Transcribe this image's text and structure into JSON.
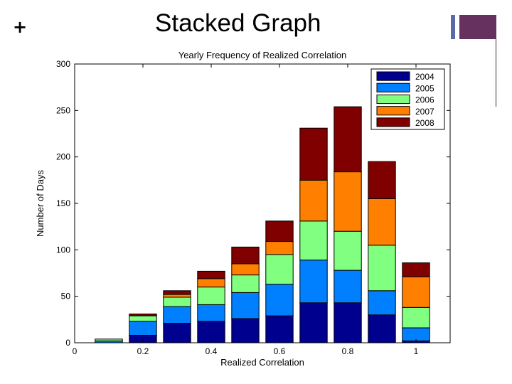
{
  "slide": {
    "title": "Stacked Graph",
    "bullet_icon": "plus-icon",
    "accent_colors": {
      "bar": "#5a6aa8",
      "block": "#66305f"
    }
  },
  "chart_data": {
    "type": "bar",
    "stacked": true,
    "title": "Yearly Frequency of Realized Correlation",
    "xlabel": "Realized Correlation",
    "ylabel": "Number of Days",
    "xlim": [
      0,
      1.1
    ],
    "ylim": [
      0,
      300
    ],
    "x_ticks": [
      0,
      0.2,
      0.4,
      0.6,
      0.8,
      1
    ],
    "x_tick_labels": [
      "0",
      "0.2",
      "0.4",
      "0.6",
      "0.8",
      "1"
    ],
    "y_ticks": [
      0,
      50,
      100,
      150,
      200,
      250,
      300
    ],
    "y_tick_labels": [
      "0",
      "50",
      "100",
      "150",
      "200",
      "250",
      "300"
    ],
    "bar_width": 0.08,
    "grid": false,
    "legend_position": "top-right",
    "x": [
      0.1,
      0.2,
      0.3,
      0.4,
      0.5,
      0.6,
      0.7,
      0.8,
      0.9,
      1.0
    ],
    "series": [
      {
        "name": "2004",
        "color": "#00008f",
        "values": [
          0,
          8,
          21,
          23,
          26,
          29,
          43,
          43,
          30,
          2
        ]
      },
      {
        "name": "2005",
        "color": "#0080ff",
        "values": [
          2,
          15,
          18,
          18,
          28,
          34,
          46,
          35,
          26,
          14
        ]
      },
      {
        "name": "2006",
        "color": "#80ff80",
        "values": [
          2,
          6,
          10,
          19,
          19,
          32,
          42,
          42,
          49,
          22
        ]
      },
      {
        "name": "2007",
        "color": "#ff8000",
        "values": [
          0,
          0,
          3,
          9,
          12,
          14,
          44,
          64,
          50,
          33
        ]
      },
      {
        "name": "2008",
        "color": "#800000",
        "values": [
          0,
          2,
          4,
          8,
          18,
          22,
          56,
          70,
          40,
          15
        ]
      }
    ]
  }
}
